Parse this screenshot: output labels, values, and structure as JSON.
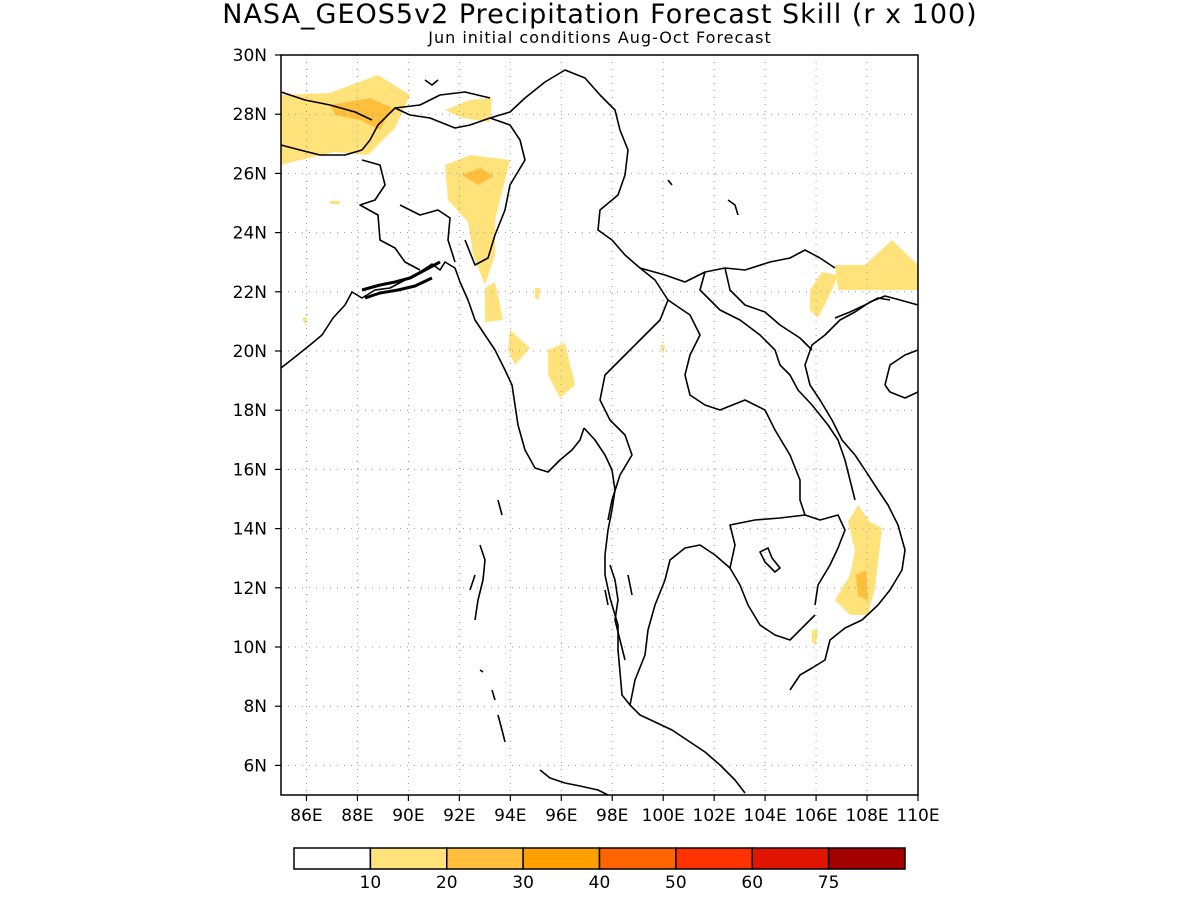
{
  "title": "NASA_GEOS5v2 Precipitation Forecast Skill (r x 100)",
  "subtitle": "Jun initial conditions  Aug-Oct Forecast",
  "map": {
    "lon_range": [
      85,
      110
    ],
    "lat_range": [
      5,
      30
    ],
    "grid": "dotted",
    "lat_ticks": [
      "6N",
      "8N",
      "10N",
      "12N",
      "14N",
      "16N",
      "18N",
      "20N",
      "22N",
      "24N",
      "26N",
      "28N",
      "30N"
    ],
    "lon_ticks": [
      "86E",
      "88E",
      "90E",
      "92E",
      "94E",
      "96E",
      "98E",
      "100E",
      "102E",
      "104E",
      "106E",
      "108E",
      "110E"
    ]
  },
  "colorbar": {
    "colors": [
      "#ffffff",
      "#ffe27a",
      "#ffbe3c",
      "#ff9f00",
      "#ff6400",
      "#ff3200",
      "#e11400",
      "#a50000"
    ],
    "labels": [
      "10",
      "20",
      "30",
      "40",
      "50",
      "60",
      "75"
    ]
  }
}
